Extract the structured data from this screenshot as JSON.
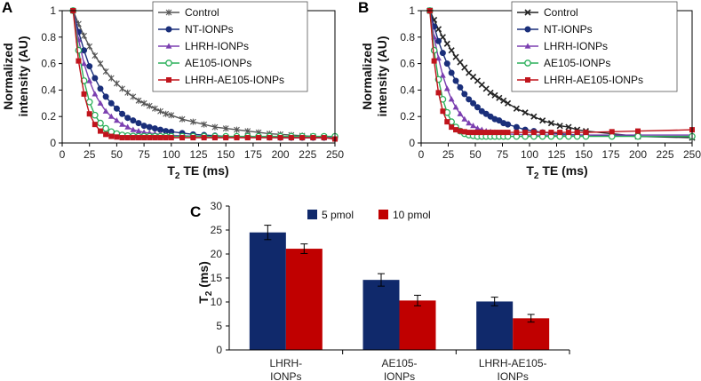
{
  "chart_data": [
    {
      "type": "line",
      "panel": "A",
      "xlabel": "T2 TE (ms)",
      "xlabel_main": "T",
      "xlabel_sub": "2",
      "xlabel_rest": " TE (ms)",
      "ylabel_line1": "Normalized",
      "ylabel_line2": "intensity (AU)",
      "xlim": [
        0,
        250
      ],
      "ylim": [
        0,
        1
      ],
      "xticks": [
        0,
        25,
        50,
        75,
        100,
        125,
        150,
        175,
        200,
        225,
        250
      ],
      "yticks": [
        0,
        0.2,
        0.4,
        0.6,
        0.8,
        1
      ],
      "ytick_labels": [
        "0",
        "0.2",
        "0.4",
        "0.6",
        "0.8",
        "1"
      ],
      "x": [
        10,
        15,
        20,
        25,
        30,
        35,
        40,
        45,
        50,
        55,
        60,
        65,
        70,
        75,
        80,
        85,
        90,
        95,
        100,
        110,
        120,
        130,
        140,
        150,
        160,
        170,
        180,
        190,
        200,
        210,
        220,
        230,
        240,
        250
      ],
      "series": [
        {
          "name": "Control",
          "color": "#555555",
          "marker": "star",
          "values": [
            1.0,
            0.9,
            0.81,
            0.73,
            0.66,
            0.6,
            0.54,
            0.49,
            0.45,
            0.41,
            0.38,
            0.35,
            0.32,
            0.3,
            0.28,
            0.26,
            0.24,
            0.22,
            0.21,
            0.18,
            0.16,
            0.14,
            0.12,
            0.11,
            0.1,
            0.09,
            0.08,
            0.07,
            0.065,
            0.06,
            0.055,
            0.05,
            0.045,
            0.04
          ]
        },
        {
          "name": "NT-IONPs",
          "color": "#1a2f7a",
          "marker": "circle",
          "values": [
            1.0,
            0.84,
            0.7,
            0.58,
            0.49,
            0.41,
            0.35,
            0.3,
            0.26,
            0.22,
            0.19,
            0.17,
            0.15,
            0.13,
            0.12,
            0.11,
            0.1,
            0.09,
            0.085,
            0.075,
            0.065,
            0.06,
            0.055,
            0.05,
            0.048,
            0.046,
            0.044,
            0.042,
            0.04,
            0.04,
            0.04,
            0.04,
            0.04,
            0.04
          ]
        },
        {
          "name": "LHRH-IONPs",
          "color": "#7b3fb0",
          "marker": "triangle",
          "values": [
            1.0,
            0.78,
            0.6,
            0.47,
            0.37,
            0.3,
            0.24,
            0.2,
            0.17,
            0.14,
            0.12,
            0.1,
            0.09,
            0.08,
            0.075,
            0.07,
            0.065,
            0.06,
            0.058,
            0.055,
            0.052,
            0.05,
            0.048,
            0.046,
            0.045,
            0.044,
            0.043,
            0.042,
            0.041,
            0.04,
            0.04,
            0.04,
            0.04,
            0.04
          ]
        },
        {
          "name": "AE105-IONPs",
          "color": "#2bb05a",
          "marker": "open-circle",
          "values": [
            1.0,
            0.7,
            0.47,
            0.31,
            0.21,
            0.15,
            0.11,
            0.085,
            0.07,
            0.06,
            0.055,
            0.052,
            0.05,
            0.05,
            0.05,
            0.05,
            0.05,
            0.05,
            0.05,
            0.05,
            0.05,
            0.05,
            0.05,
            0.05,
            0.05,
            0.05,
            0.05,
            0.05,
            0.05,
            0.05,
            0.05,
            0.05,
            0.05,
            0.05
          ]
        },
        {
          "name": "LHRH-AE105-IONPs",
          "color": "#c0141c",
          "marker": "square",
          "values": [
            1.0,
            0.62,
            0.37,
            0.22,
            0.14,
            0.09,
            0.065,
            0.05,
            0.045,
            0.04,
            0.04,
            0.04,
            0.04,
            0.04,
            0.04,
            0.04,
            0.04,
            0.04,
            0.04,
            0.04,
            0.04,
            0.04,
            0.04,
            0.04,
            0.04,
            0.04,
            0.04,
            0.04,
            0.04,
            0.04,
            0.04,
            0.04,
            0.04,
            0.03
          ]
        }
      ]
    },
    {
      "type": "line",
      "panel": "B",
      "xlabel": "T2 TE (ms)",
      "xlabel_main": "T",
      "xlabel_sub": "2",
      "xlabel_rest": " TE (ms)",
      "ylabel_line1": "Normalized",
      "ylabel_line2": "intensity (AU)",
      "xlim": [
        0,
        250
      ],
      "ylim": [
        0,
        1
      ],
      "xticks": [
        0,
        25,
        50,
        75,
        100,
        125,
        150,
        175,
        200,
        225,
        250
      ],
      "yticks": [
        0,
        0.2,
        0.4,
        0.6,
        0.8,
        1
      ],
      "ytick_labels": [
        "0",
        "0.2",
        "0.4",
        "0.6",
        "0.8",
        "1"
      ],
      "x": [
        8,
        12,
        16,
        20,
        24,
        28,
        32,
        36,
        40,
        44,
        48,
        52,
        56,
        60,
        64,
        68,
        72,
        76,
        80,
        88,
        96,
        104,
        112,
        120,
        128,
        136,
        144,
        152,
        176,
        200,
        250
      ],
      "series": [
        {
          "name": "Control",
          "color": "#222222",
          "marker": "cross",
          "values": [
            1.0,
            0.93,
            0.86,
            0.8,
            0.75,
            0.7,
            0.65,
            0.61,
            0.57,
            0.53,
            0.5,
            0.47,
            0.44,
            0.41,
            0.38,
            0.36,
            0.34,
            0.32,
            0.3,
            0.26,
            0.23,
            0.2,
            0.17,
            0.15,
            0.13,
            0.12,
            0.1,
            0.09,
            0.07,
            0.05,
            0.04
          ]
        },
        {
          "name": "NT-IONPs",
          "color": "#1a2f7a",
          "marker": "circle",
          "values": [
            1.0,
            0.88,
            0.77,
            0.68,
            0.6,
            0.53,
            0.47,
            0.42,
            0.37,
            0.33,
            0.3,
            0.27,
            0.24,
            0.22,
            0.2,
            0.18,
            0.17,
            0.15,
            0.14,
            0.12,
            0.1,
            0.09,
            0.08,
            0.075,
            0.07,
            0.065,
            0.06,
            0.06,
            0.055,
            0.05,
            0.05
          ]
        },
        {
          "name": "LHRH-IONPs",
          "color": "#7b3fb0",
          "marker": "triangle",
          "values": [
            1.0,
            0.8,
            0.64,
            0.51,
            0.41,
            0.33,
            0.27,
            0.22,
            0.18,
            0.15,
            0.13,
            0.11,
            0.1,
            0.09,
            0.085,
            0.08,
            0.075,
            0.07,
            0.068,
            0.065,
            0.062,
            0.06,
            0.06,
            0.06,
            0.06,
            0.06,
            0.06,
            0.06,
            0.06,
            0.06,
            0.06
          ]
        },
        {
          "name": "AE105-IONPs",
          "color": "#2bb05a",
          "marker": "open-circle",
          "values": [
            1.0,
            0.7,
            0.48,
            0.33,
            0.23,
            0.16,
            0.12,
            0.09,
            0.07,
            0.06,
            0.055,
            0.05,
            0.05,
            0.05,
            0.05,
            0.05,
            0.05,
            0.05,
            0.05,
            0.05,
            0.05,
            0.05,
            0.05,
            0.05,
            0.05,
            0.05,
            0.05,
            0.05,
            0.05,
            0.05,
            0.05
          ]
        },
        {
          "name": "LHRH-AE105-IONPs",
          "color": "#c0141c",
          "marker": "square",
          "values": [
            1.0,
            0.62,
            0.38,
            0.24,
            0.16,
            0.12,
            0.1,
            0.09,
            0.085,
            0.08,
            0.08,
            0.08,
            0.08,
            0.08,
            0.08,
            0.08,
            0.08,
            0.08,
            0.08,
            0.08,
            0.08,
            0.08,
            0.08,
            0.08,
            0.08,
            0.08,
            0.08,
            0.08,
            0.085,
            0.09,
            0.1
          ]
        }
      ]
    },
    {
      "type": "bar",
      "panel": "C",
      "ylabel": "T2 (ms)",
      "ylabel_main": "T",
      "ylabel_sub": "2",
      "ylabel_rest": " (ms)",
      "ylim": [
        0,
        30
      ],
      "yticks": [
        0,
        5,
        10,
        15,
        20,
        25,
        30
      ],
      "categories": [
        "LHRH-IONPs",
        "AE105-IONPs",
        "LHRH-AE105-IONPs"
      ],
      "category_lines": [
        [
          "LHRH-",
          "IONPs"
        ],
        [
          "AE105-",
          "IONPs"
        ],
        [
          "LHRH-AE105-",
          "IONPs"
        ]
      ],
      "series": [
        {
          "name": "5 pmol",
          "color": "#10296b",
          "values": [
            24.5,
            14.6,
            10.1
          ],
          "errors": [
            1.5,
            1.3,
            0.9
          ]
        },
        {
          "name": "10 pmol",
          "color": "#c00000",
          "values": [
            21.1,
            10.3,
            6.6
          ],
          "errors": [
            1.0,
            1.1,
            0.8
          ]
        }
      ]
    }
  ]
}
